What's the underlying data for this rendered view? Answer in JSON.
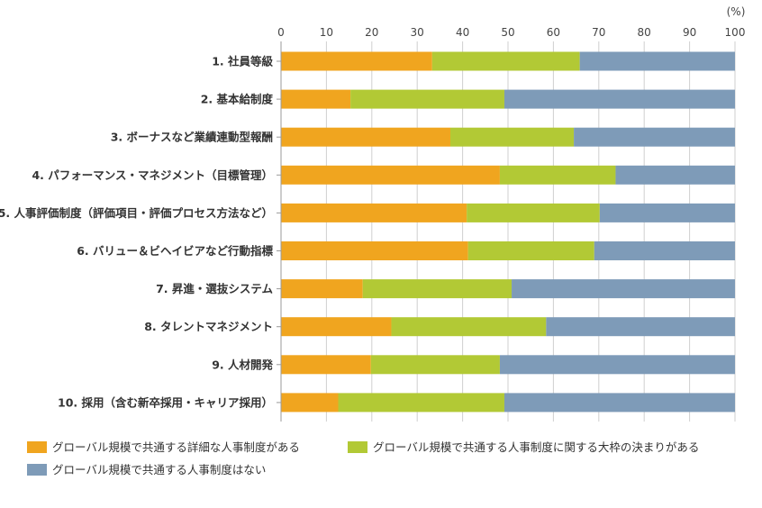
{
  "chart_data": {
    "type": "bar",
    "orientation": "horizontal",
    "stacked": true,
    "title": "",
    "xlabel": "",
    "ylabel": "",
    "unit_label": "(%)",
    "xlim": [
      0,
      100
    ],
    "x_ticks": [
      "0",
      "10",
      "20",
      "30",
      "40",
      "50",
      "60",
      "70",
      "80",
      "90",
      "100"
    ],
    "grid": true,
    "legend_position": "bottom",
    "categories": [
      "1. 社員等級",
      "2. 基本給制度",
      "3. ボーナスなど業績連動型報酬",
      "4. パフォーマンス・マネジメント（目標管理）",
      "5. 人事評価制度（評価項目・評価プロセス方法など）",
      "6. バリュー＆ビヘイビアなど行動指標",
      "7. 昇進・選抜システム",
      "8. タレントマネジメント",
      "9. 人材開発",
      "10. 採用（含む新卒採用・キャリア採用）"
    ],
    "series": [
      {
        "name": "グローバル規模で共通する詳細な人事制度がある",
        "color": "#F0A51F",
        "values": [
          33.3,
          15.3,
          37.3,
          48.2,
          40.9,
          41.2,
          18.0,
          24.3,
          19.8,
          12.6
        ]
      },
      {
        "name": "グローバル規模で共通する人事制度に関する大枠の決まりがある",
        "color": "#B2C935",
        "values": [
          32.5,
          33.9,
          27.2,
          25.5,
          29.3,
          27.8,
          32.8,
          34.1,
          28.4,
          36.6
        ]
      },
      {
        "name": "グローバル規模で共通する人事制度はない",
        "color": "#7E9BB8",
        "values": [
          34.2,
          50.8,
          35.5,
          26.3,
          29.8,
          31.0,
          49.2,
          41.6,
          51.8,
          50.8
        ]
      }
    ]
  }
}
